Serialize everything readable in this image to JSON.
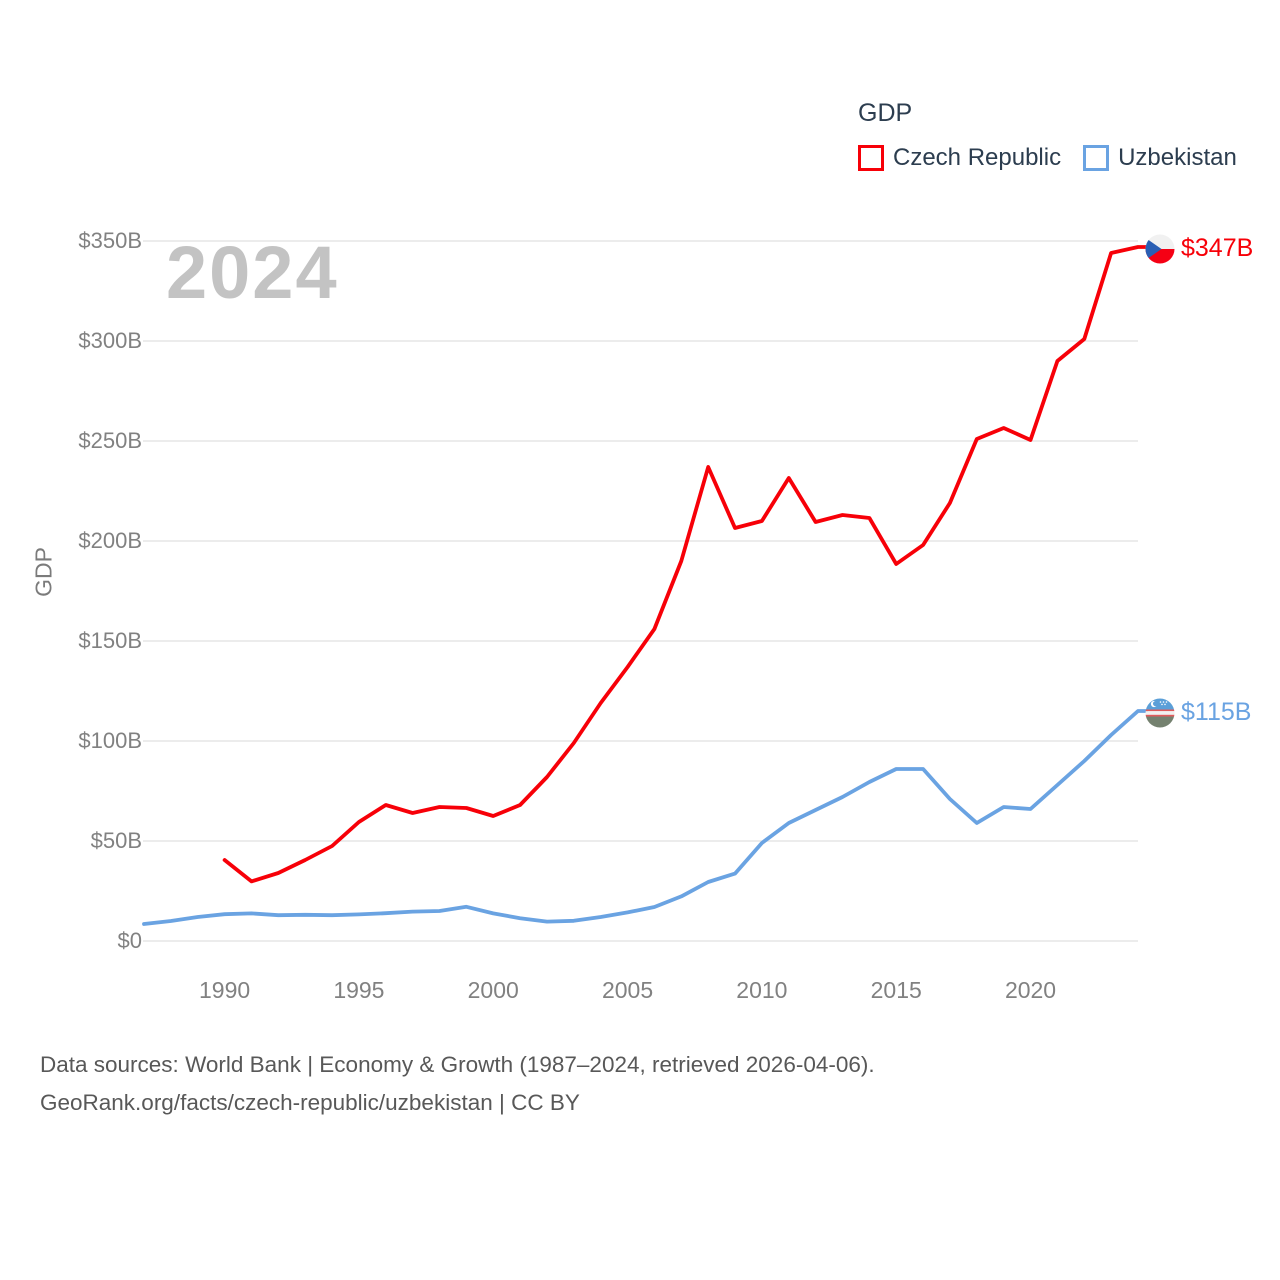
{
  "watermark": "2024",
  "legend": {
    "title": "GDP",
    "items": [
      {
        "label": "Czech Republic",
        "color": "#f70008"
      },
      {
        "label": "Uzbekistan",
        "color": "#6aa3e2"
      }
    ]
  },
  "footer": {
    "line1": "Data sources: World Bank | Economy & Growth (1987–2024, retrieved 2026-04-06).",
    "line2": "GeoRank.org/facts/czech-republic/uzbekistan | CC BY"
  },
  "chart_data": {
    "type": "line",
    "title": "GDP",
    "xlabel": "",
    "ylabel": "GDP",
    "grid": true,
    "legend_position": "top-right",
    "xlim": [
      1987,
      2024
    ],
    "ylim": [
      0,
      350
    ],
    "y_ticks": [
      {
        "value": 0,
        "label": "$0"
      },
      {
        "value": 50,
        "label": "$50B"
      },
      {
        "value": 100,
        "label": "$100B"
      },
      {
        "value": 150,
        "label": "$150B"
      },
      {
        "value": 200,
        "label": "$200B"
      },
      {
        "value": 250,
        "label": "$250B"
      },
      {
        "value": 300,
        "label": "$300B"
      },
      {
        "value": 350,
        "label": "$350B"
      }
    ],
    "x_ticks": [
      {
        "value": 1990,
        "label": "1990"
      },
      {
        "value": 1995,
        "label": "1995"
      },
      {
        "value": 2000,
        "label": "2000"
      },
      {
        "value": 2005,
        "label": "2005"
      },
      {
        "value": 2010,
        "label": "2010"
      },
      {
        "value": 2015,
        "label": "2015"
      },
      {
        "value": 2020,
        "label": "2020"
      }
    ],
    "series": [
      {
        "name": "Czech Republic",
        "color": "#f70008",
        "end_label": "$347B",
        "flag": "czech-republic",
        "x": [
          1990,
          1991,
          1992,
          1993,
          1994,
          1995,
          1996,
          1997,
          1998,
          1999,
          2000,
          2001,
          2002,
          2003,
          2004,
          2005,
          2006,
          2007,
          2008,
          2009,
          2010,
          2011,
          2012,
          2013,
          2014,
          2015,
          2016,
          2017,
          2018,
          2019,
          2020,
          2021,
          2022,
          2023,
          2024
        ],
        "values": [
          40.5,
          29.8,
          34,
          40.5,
          47.5,
          59.5,
          68,
          64,
          67,
          66.5,
          62.5,
          68,
          82,
          99,
          119,
          137,
          156,
          190,
          237,
          206.5,
          210,
          231.5,
          209.5,
          213,
          211.5,
          188.5,
          198,
          219,
          251,
          256.5,
          250.5,
          290,
          301,
          344,
          347
        ]
      },
      {
        "name": "Uzbekistan",
        "color": "#6aa3e2",
        "end_label": "$115B",
        "flag": "uzbekistan",
        "x": [
          1987,
          1988,
          1989,
          1990,
          1991,
          1992,
          1993,
          1994,
          1995,
          1996,
          1997,
          1998,
          1999,
          2000,
          2001,
          2002,
          2003,
          2004,
          2005,
          2006,
          2007,
          2008,
          2009,
          2010,
          2011,
          2012,
          2013,
          2014,
          2015,
          2016,
          2017,
          2018,
          2019,
          2020,
          2021,
          2022,
          2023,
          2024
        ],
        "values": [
          8.5,
          10,
          12,
          13.4,
          13.8,
          12.9,
          13.1,
          12.9,
          13.3,
          13.9,
          14.7,
          15,
          17.1,
          13.8,
          11.4,
          9.7,
          10.1,
          12,
          14.3,
          17,
          22.3,
          29.5,
          33.7,
          49,
          59,
          65.5,
          72,
          79.5,
          86,
          86,
          71,
          59,
          67,
          66,
          78,
          90,
          103,
          115
        ]
      }
    ]
  }
}
